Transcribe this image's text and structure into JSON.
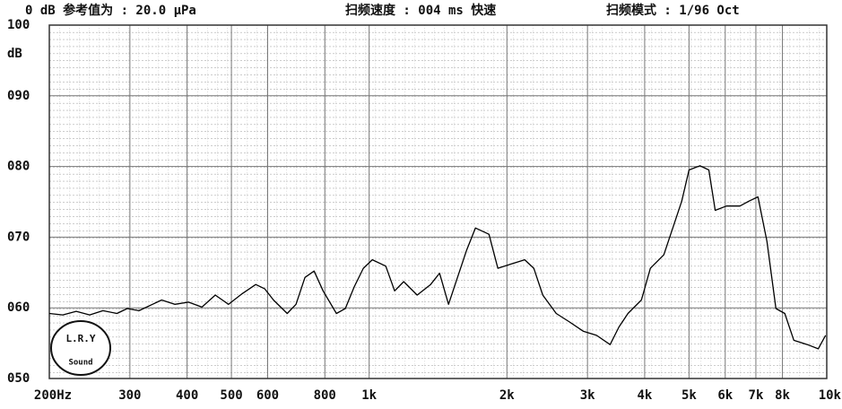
{
  "chart_data": {
    "type": "line",
    "header": [
      "0 dB 参考值为 : 20.0 μPa",
      "扫频速度 : 004 ms 快速",
      "扫频模式 : 1/96  Oct"
    ],
    "y_label": "dB",
    "logo": {
      "top": "L.R.Y",
      "bottom": "Sound"
    },
    "x_log": true,
    "grid": true,
    "xlim": [
      200,
      10000
    ],
    "ylim": [
      50,
      100
    ],
    "xticks": [
      {
        "value": 200,
        "label": "200Hz"
      },
      300,
      400,
      500,
      600,
      800,
      {
        "value": 1000,
        "label": "1k"
      },
      {
        "value": 2000,
        "label": "2k"
      },
      {
        "value": 3000,
        "label": "3k"
      },
      {
        "value": 4000,
        "label": "4k"
      },
      {
        "value": 5000,
        "label": "5k"
      },
      {
        "value": 6000,
        "label": "6k"
      },
      {
        "value": 7000,
        "label": "7k"
      },
      {
        "value": 8000,
        "label": "8k"
      },
      {
        "value": 10000,
        "label": "10k"
      }
    ],
    "yticks": [
      {
        "value": 50,
        "label": "050"
      },
      {
        "value": 60,
        "label": "060"
      },
      {
        "value": 70,
        "label": "070"
      },
      {
        "value": 80,
        "label": "080"
      },
      {
        "value": 90,
        "label": "090"
      },
      100
    ],
    "series": [
      {
        "color": "#000000",
        "x": [
          200,
          214,
          229,
          245,
          262,
          281,
          296,
          314,
          336,
          352,
          376,
          403,
          431,
          461,
          493,
          528,
          565,
          591,
          618,
          662,
          692,
          724,
          758,
          793,
          848,
          887,
          928,
          971,
          1016,
          1087,
          1137,
          1190,
          1273,
          1362,
          1425,
          1491,
          1560,
          1632,
          1707,
          1827,
          1911,
          2046,
          2188,
          2290,
          2395,
          2563,
          2742,
          2935,
          3140,
          3361,
          3516,
          3678,
          3935,
          4117,
          4405,
          4609,
          4821,
          5001,
          5283,
          5526,
          5704,
          6039,
          6462,
          6762,
          7073,
          7400,
          7741,
          8098,
          8472,
          9071,
          9580,
          9940
        ],
        "values": [
          59.2,
          59.0,
          59.5,
          59.0,
          59.6,
          59.2,
          59.9,
          59.6,
          60.5,
          61.1,
          60.5,
          60.8,
          60.1,
          61.8,
          60.5,
          62.0,
          63.3,
          62.7,
          61.1,
          59.2,
          60.5,
          64.3,
          65.2,
          62.4,
          59.2,
          59.9,
          63.0,
          65.6,
          66.8,
          65.9,
          62.4,
          63.7,
          61.8,
          63.3,
          64.9,
          60.5,
          64.3,
          68.1,
          71.3,
          70.4,
          65.6,
          66.2,
          66.8,
          65.6,
          61.8,
          59.2,
          58.0,
          56.7,
          56.1,
          54.8,
          57.3,
          59.2,
          61.1,
          65.6,
          67.5,
          71.3,
          75.1,
          79.5,
          80.1,
          79.5,
          73.8,
          74.4,
          74.4,
          75.1,
          75.7,
          69.4,
          59.9,
          59.2,
          55.4,
          54.8,
          54.2,
          56.1
        ]
      }
    ]
  }
}
